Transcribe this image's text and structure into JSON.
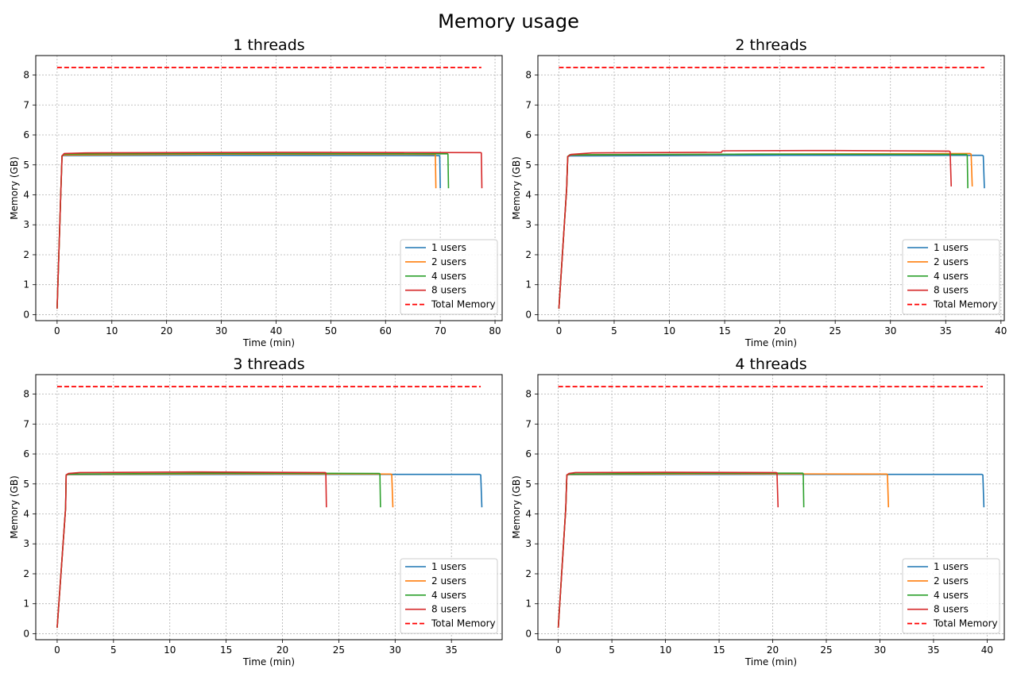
{
  "figure": {
    "title": "Memory usage"
  },
  "colors": {
    "1 users": "#1f77b4",
    "2 users": "#ff7f0e",
    "4 users": "#2ca02c",
    "8 users": "#d62728",
    "Total Memory": "#ff0000"
  },
  "chart_data": [
    {
      "type": "line",
      "title": "1 threads",
      "xlabel": "Time (min)",
      "ylabel": "Memory (GB)",
      "xlim": [
        -3.9,
        81.3
      ],
      "ylim": [
        -0.2,
        8.65
      ],
      "xticks": [
        0,
        10,
        20,
        30,
        40,
        50,
        60,
        70,
        80
      ],
      "yticks": [
        0,
        1,
        2,
        3,
        4,
        5,
        6,
        7,
        8
      ],
      "grid": true,
      "legend": "lower-right",
      "series": [
        {
          "name": "1 users",
          "color": "#1f77b4",
          "x": [
            0,
            0.7,
            0.9,
            1.2,
            30,
            69.8,
            69.9,
            70.0
          ],
          "y": [
            0.2,
            4.2,
            5.3,
            5.31,
            5.32,
            5.31,
            5.3,
            4.22
          ]
        },
        {
          "name": "2 users",
          "color": "#ff7f0e",
          "x": [
            0,
            0.7,
            0.9,
            1.2,
            30,
            69.0,
            69.1,
            69.2
          ],
          "y": [
            0.2,
            4.2,
            5.3,
            5.33,
            5.36,
            5.35,
            5.34,
            4.22
          ]
        },
        {
          "name": "4 users",
          "color": "#2ca02c",
          "x": [
            0,
            0.7,
            0.9,
            1.2,
            30,
            71.3,
            71.4,
            71.5
          ],
          "y": [
            0.2,
            4.2,
            5.3,
            5.36,
            5.38,
            5.37,
            5.36,
            4.22
          ]
        },
        {
          "name": "8 users",
          "color": "#d62728",
          "x": [
            0,
            0.7,
            0.9,
            1.3,
            5.2,
            40,
            77.4,
            77.5,
            77.6
          ],
          "y": [
            0.2,
            4.2,
            5.3,
            5.38,
            5.4,
            5.42,
            5.41,
            5.4,
            4.22
          ]
        },
        {
          "name": "Total Memory",
          "color": "#ff0000",
          "dashed": true,
          "x": [
            0,
            77.5
          ],
          "y": [
            8.25,
            8.25
          ]
        }
      ]
    },
    {
      "type": "line",
      "title": "2 threads",
      "xlabel": "Time (min)",
      "ylabel": "Memory (GB)",
      "xlim": [
        -1.9,
        40.3
      ],
      "ylim": [
        -0.2,
        8.65
      ],
      "xticks": [
        0,
        5,
        10,
        15,
        20,
        25,
        30,
        35,
        40
      ],
      "yticks": [
        0,
        1,
        2,
        3,
        4,
        5,
        6,
        7,
        8
      ],
      "grid": true,
      "legend": "lower-right",
      "series": [
        {
          "name": "1 users",
          "color": "#1f77b4",
          "x": [
            0,
            0.7,
            0.8,
            1.0,
            20,
            38.3,
            38.4,
            38.5
          ],
          "y": [
            0.2,
            4.2,
            5.28,
            5.3,
            5.32,
            5.32,
            5.3,
            4.22
          ]
        },
        {
          "name": "2 users",
          "color": "#ff7f0e",
          "x": [
            0,
            0.7,
            0.8,
            1.0,
            18,
            37.2,
            37.3,
            37.4
          ],
          "y": [
            0.2,
            4.2,
            5.28,
            5.33,
            5.36,
            5.38,
            5.36,
            4.28
          ]
        },
        {
          "name": "4 users",
          "color": "#2ca02c",
          "x": [
            0,
            0.7,
            0.8,
            1.0,
            18,
            36.9,
            36.95,
            37.0
          ],
          "y": [
            0.2,
            4.2,
            5.28,
            5.34,
            5.36,
            5.35,
            5.3,
            4.22
          ]
        },
        {
          "name": "8 users",
          "color": "#d62728",
          "x": [
            0,
            0.7,
            0.8,
            1.1,
            3.0,
            14.7,
            14.8,
            25,
            35.3,
            35.4,
            35.5
          ],
          "y": [
            0.2,
            4.2,
            5.28,
            5.35,
            5.4,
            5.42,
            5.47,
            5.48,
            5.46,
            5.44,
            4.28
          ]
        },
        {
          "name": "Total Memory",
          "color": "#ff0000",
          "dashed": true,
          "x": [
            0,
            38.5
          ],
          "y": [
            8.25,
            8.25
          ]
        }
      ]
    },
    {
      "type": "line",
      "title": "3 threads",
      "xlabel": "Time (min)",
      "ylabel": "Memory (GB)",
      "xlim": [
        -1.9,
        39.5
      ],
      "ylim": [
        -0.2,
        8.65
      ],
      "xticks": [
        0,
        5,
        10,
        15,
        20,
        25,
        30,
        35
      ],
      "yticks": [
        0,
        1,
        2,
        3,
        4,
        5,
        6,
        7,
        8
      ],
      "grid": true,
      "legend": "lower-right",
      "series": [
        {
          "name": "1 users",
          "color": "#1f77b4",
          "x": [
            0,
            0.75,
            0.8,
            1.0,
            20,
            37.5,
            37.6,
            37.7
          ],
          "y": [
            0.2,
            4.2,
            5.3,
            5.31,
            5.32,
            5.32,
            5.3,
            4.22
          ]
        },
        {
          "name": "2 users",
          "color": "#ff7f0e",
          "x": [
            0,
            0.75,
            0.8,
            1.0,
            15,
            29.6,
            29.7,
            29.8
          ],
          "y": [
            0.2,
            4.2,
            5.3,
            5.32,
            5.34,
            5.33,
            5.32,
            4.22
          ]
        },
        {
          "name": "4 users",
          "color": "#2ca02c",
          "x": [
            0,
            0.75,
            0.8,
            1.0,
            15,
            28.6,
            28.65,
            28.7
          ],
          "y": [
            0.2,
            4.2,
            5.3,
            5.33,
            5.36,
            5.35,
            5.34,
            4.22
          ]
        },
        {
          "name": "8 users",
          "color": "#d62728",
          "x": [
            0,
            0.75,
            0.8,
            1.0,
            2.0,
            12,
            23.8,
            23.85,
            23.9
          ],
          "y": [
            0.2,
            4.2,
            5.3,
            5.35,
            5.38,
            5.4,
            5.38,
            5.37,
            4.22
          ]
        },
        {
          "name": "Total Memory",
          "color": "#ff0000",
          "dashed": true,
          "x": [
            0,
            37.6
          ],
          "y": [
            8.25,
            8.25
          ]
        }
      ]
    },
    {
      "type": "line",
      "title": "4 threads",
      "xlabel": "Time (min)",
      "ylabel": "Memory (GB)",
      "xlim": [
        -1.9,
        41.6
      ],
      "ylim": [
        -0.2,
        8.65
      ],
      "xticks": [
        0,
        5,
        10,
        15,
        20,
        25,
        30,
        35,
        40
      ],
      "yticks": [
        0,
        1,
        2,
        3,
        4,
        5,
        6,
        7,
        8
      ],
      "grid": true,
      "legend": "lower-right",
      "series": [
        {
          "name": "1 users",
          "color": "#1f77b4",
          "x": [
            0,
            0.7,
            0.8,
            1.0,
            20,
            39.5,
            39.6,
            39.7
          ],
          "y": [
            0.2,
            4.2,
            5.3,
            5.31,
            5.32,
            5.32,
            5.3,
            4.22
          ]
        },
        {
          "name": "2 users",
          "color": "#ff7f0e",
          "x": [
            0,
            0.7,
            0.8,
            1.0,
            15,
            30.6,
            30.7,
            30.8
          ],
          "y": [
            0.2,
            4.2,
            5.3,
            5.32,
            5.34,
            5.33,
            5.32,
            4.22
          ]
        },
        {
          "name": "4 users",
          "color": "#2ca02c",
          "x": [
            0,
            0.7,
            0.8,
            1.0,
            12,
            22.8,
            22.85,
            22.9
          ],
          "y": [
            0.2,
            4.2,
            5.3,
            5.33,
            5.36,
            5.36,
            5.34,
            4.22
          ]
        },
        {
          "name": "8 users",
          "color": "#d62728",
          "x": [
            0,
            0.7,
            0.8,
            1.0,
            1.6,
            10,
            20.3,
            20.4,
            20.5
          ],
          "y": [
            0.2,
            4.2,
            5.3,
            5.35,
            5.38,
            5.39,
            5.38,
            5.37,
            4.22
          ]
        },
        {
          "name": "Total Memory",
          "color": "#ff0000",
          "dashed": true,
          "x": [
            0,
            39.6
          ],
          "y": [
            8.25,
            8.25
          ]
        }
      ]
    }
  ]
}
